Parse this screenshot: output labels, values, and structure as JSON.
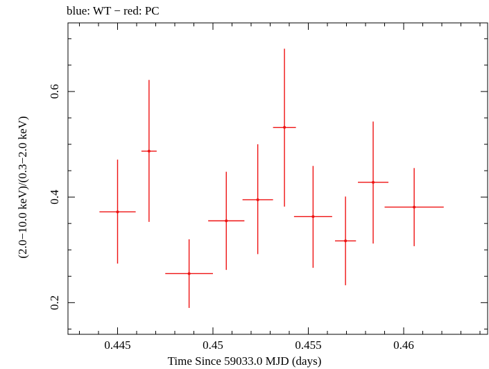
{
  "chart_data": {
    "type": "scatter",
    "title": "blue: WT − red: PC",
    "xlabel": "Time Since 59033.0 MJD (days)",
    "ylabel": "(2.0−10.0 keV)/(0.3−2.0 keV)",
    "xlim": [
      0.4424,
      0.4644
    ],
    "ylim": [
      0.14,
      0.73
    ],
    "x_ticks": [
      0.445,
      0.45,
      0.455,
      0.46
    ],
    "x_tick_labels": [
      "0.445",
      "0.45",
      "0.455",
      "0.46"
    ],
    "y_ticks": [
      0.2,
      0.4,
      0.6
    ],
    "y_tick_labels": [
      "0.2",
      "0.4",
      "0.6"
    ],
    "grid": false,
    "series": [
      {
        "color": "#ee1111",
        "points": [
          {
            "x": 0.445,
            "xerr": 0.00095,
            "y": 0.372,
            "yerr_low": 0.098,
            "yerr_high": 0.099
          },
          {
            "x": 0.44665,
            "xerr": 0.0004,
            "y": 0.487,
            "yerr_low": 0.134,
            "yerr_high": 0.135
          },
          {
            "x": 0.44875,
            "xerr": 0.00125,
            "y": 0.255,
            "yerr_low": 0.065,
            "yerr_high": 0.065
          },
          {
            "x": 0.4507,
            "xerr": 0.00095,
            "y": 0.355,
            "yerr_low": 0.093,
            "yerr_high": 0.093
          },
          {
            "x": 0.45235,
            "xerr": 0.0008,
            "y": 0.395,
            "yerr_low": 0.103,
            "yerr_high": 0.105
          },
          {
            "x": 0.45375,
            "xerr": 0.0006,
            "y": 0.532,
            "yerr_low": 0.15,
            "yerr_high": 0.149
          },
          {
            "x": 0.45525,
            "xerr": 0.001,
            "y": 0.363,
            "yerr_low": 0.097,
            "yerr_high": 0.096
          },
          {
            "x": 0.45695,
            "xerr": 0.00055,
            "y": 0.317,
            "yerr_low": 0.084,
            "yerr_high": 0.084
          },
          {
            "x": 0.4584,
            "xerr": 0.0008,
            "y": 0.428,
            "yerr_low": 0.116,
            "yerr_high": 0.115
          },
          {
            "x": 0.46055,
            "xerr": 0.00155,
            "y": 0.381,
            "yerr_low": 0.074,
            "yerr_high": 0.074
          }
        ]
      }
    ]
  }
}
